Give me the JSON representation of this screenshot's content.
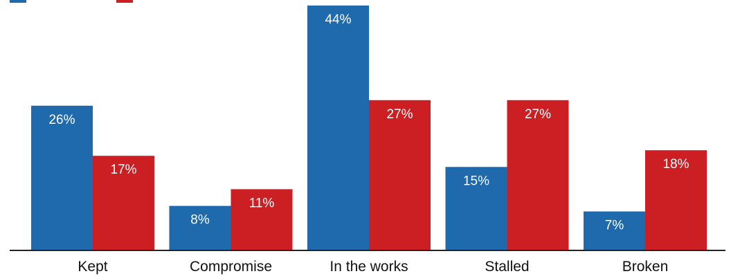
{
  "chart_data": {
    "type": "bar",
    "categories": [
      "Kept",
      "Compromise",
      "In the works",
      "Stalled",
      "Broken"
    ],
    "series": [
      {
        "values": [
          26,
          8,
          44,
          15,
          7
        ],
        "labels": [
          "26%",
          "8%",
          "44%",
          "15%",
          "7%"
        ],
        "color": "#1f6aad"
      },
      {
        "values": [
          17,
          11,
          27,
          27,
          18
        ],
        "labels": [
          "17%",
          "11%",
          "27%",
          "27%",
          "18%"
        ],
        "color": "#cc1f24"
      }
    ],
    "ylim": [
      0,
      44
    ],
    "baseline_color": "#222222",
    "grid": false
  }
}
